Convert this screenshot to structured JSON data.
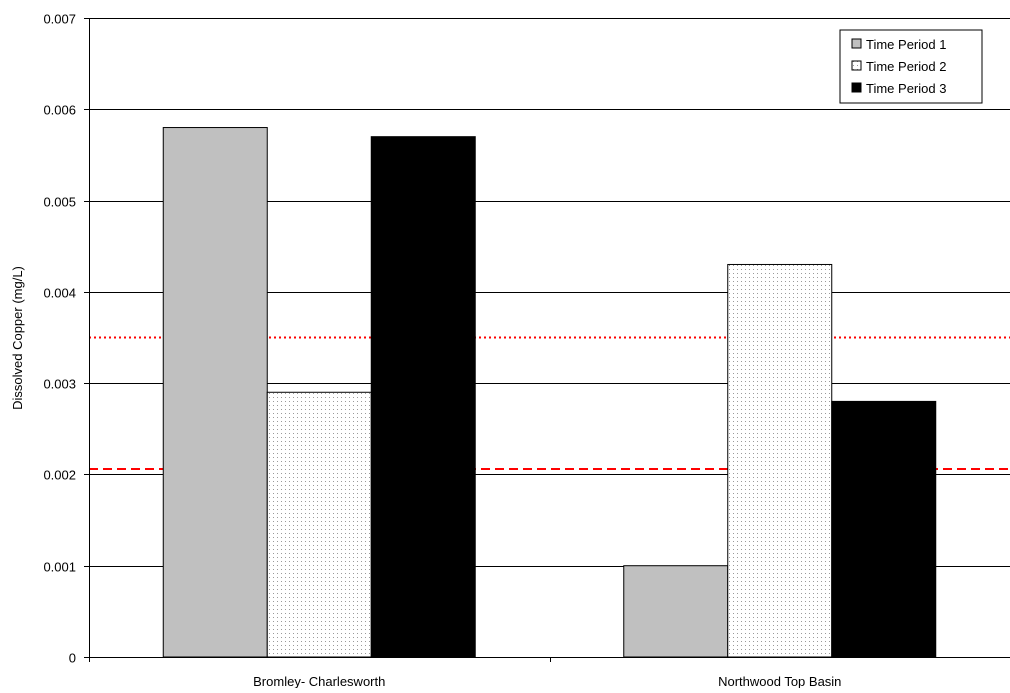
{
  "chart_data": {
    "type": "bar",
    "title": "",
    "xlabel": "",
    "ylabel": "Dissolved Copper (mg/L)",
    "ylim": [
      0,
      0.007
    ],
    "yticks": [
      "0",
      "0.001",
      "0.002",
      "0.003",
      "0.004",
      "0.005",
      "0.006",
      "0.007"
    ],
    "categories": [
      "Bromley- Charlesworth",
      "Northwood Top Basin"
    ],
    "series": [
      {
        "name": "Time Period 1",
        "values": [
          0.0058,
          0.001
        ],
        "fill": "#c0c0c0",
        "pattern": "solid"
      },
      {
        "name": "Time Period 2",
        "values": [
          0.0029,
          0.0043
        ],
        "fill": "#ffffff",
        "pattern": "dots"
      },
      {
        "name": "Time Period 3",
        "values": [
          0.0057,
          0.0028
        ],
        "fill": "#000000",
        "pattern": "solid"
      }
    ],
    "reference_lines": [
      {
        "value": 0.0035,
        "style": "dotted",
        "color": "#ff0000"
      },
      {
        "value": 0.00206,
        "style": "dashed",
        "color": "#ff0000"
      }
    ],
    "grid": true,
    "legend_position": "top-right"
  }
}
